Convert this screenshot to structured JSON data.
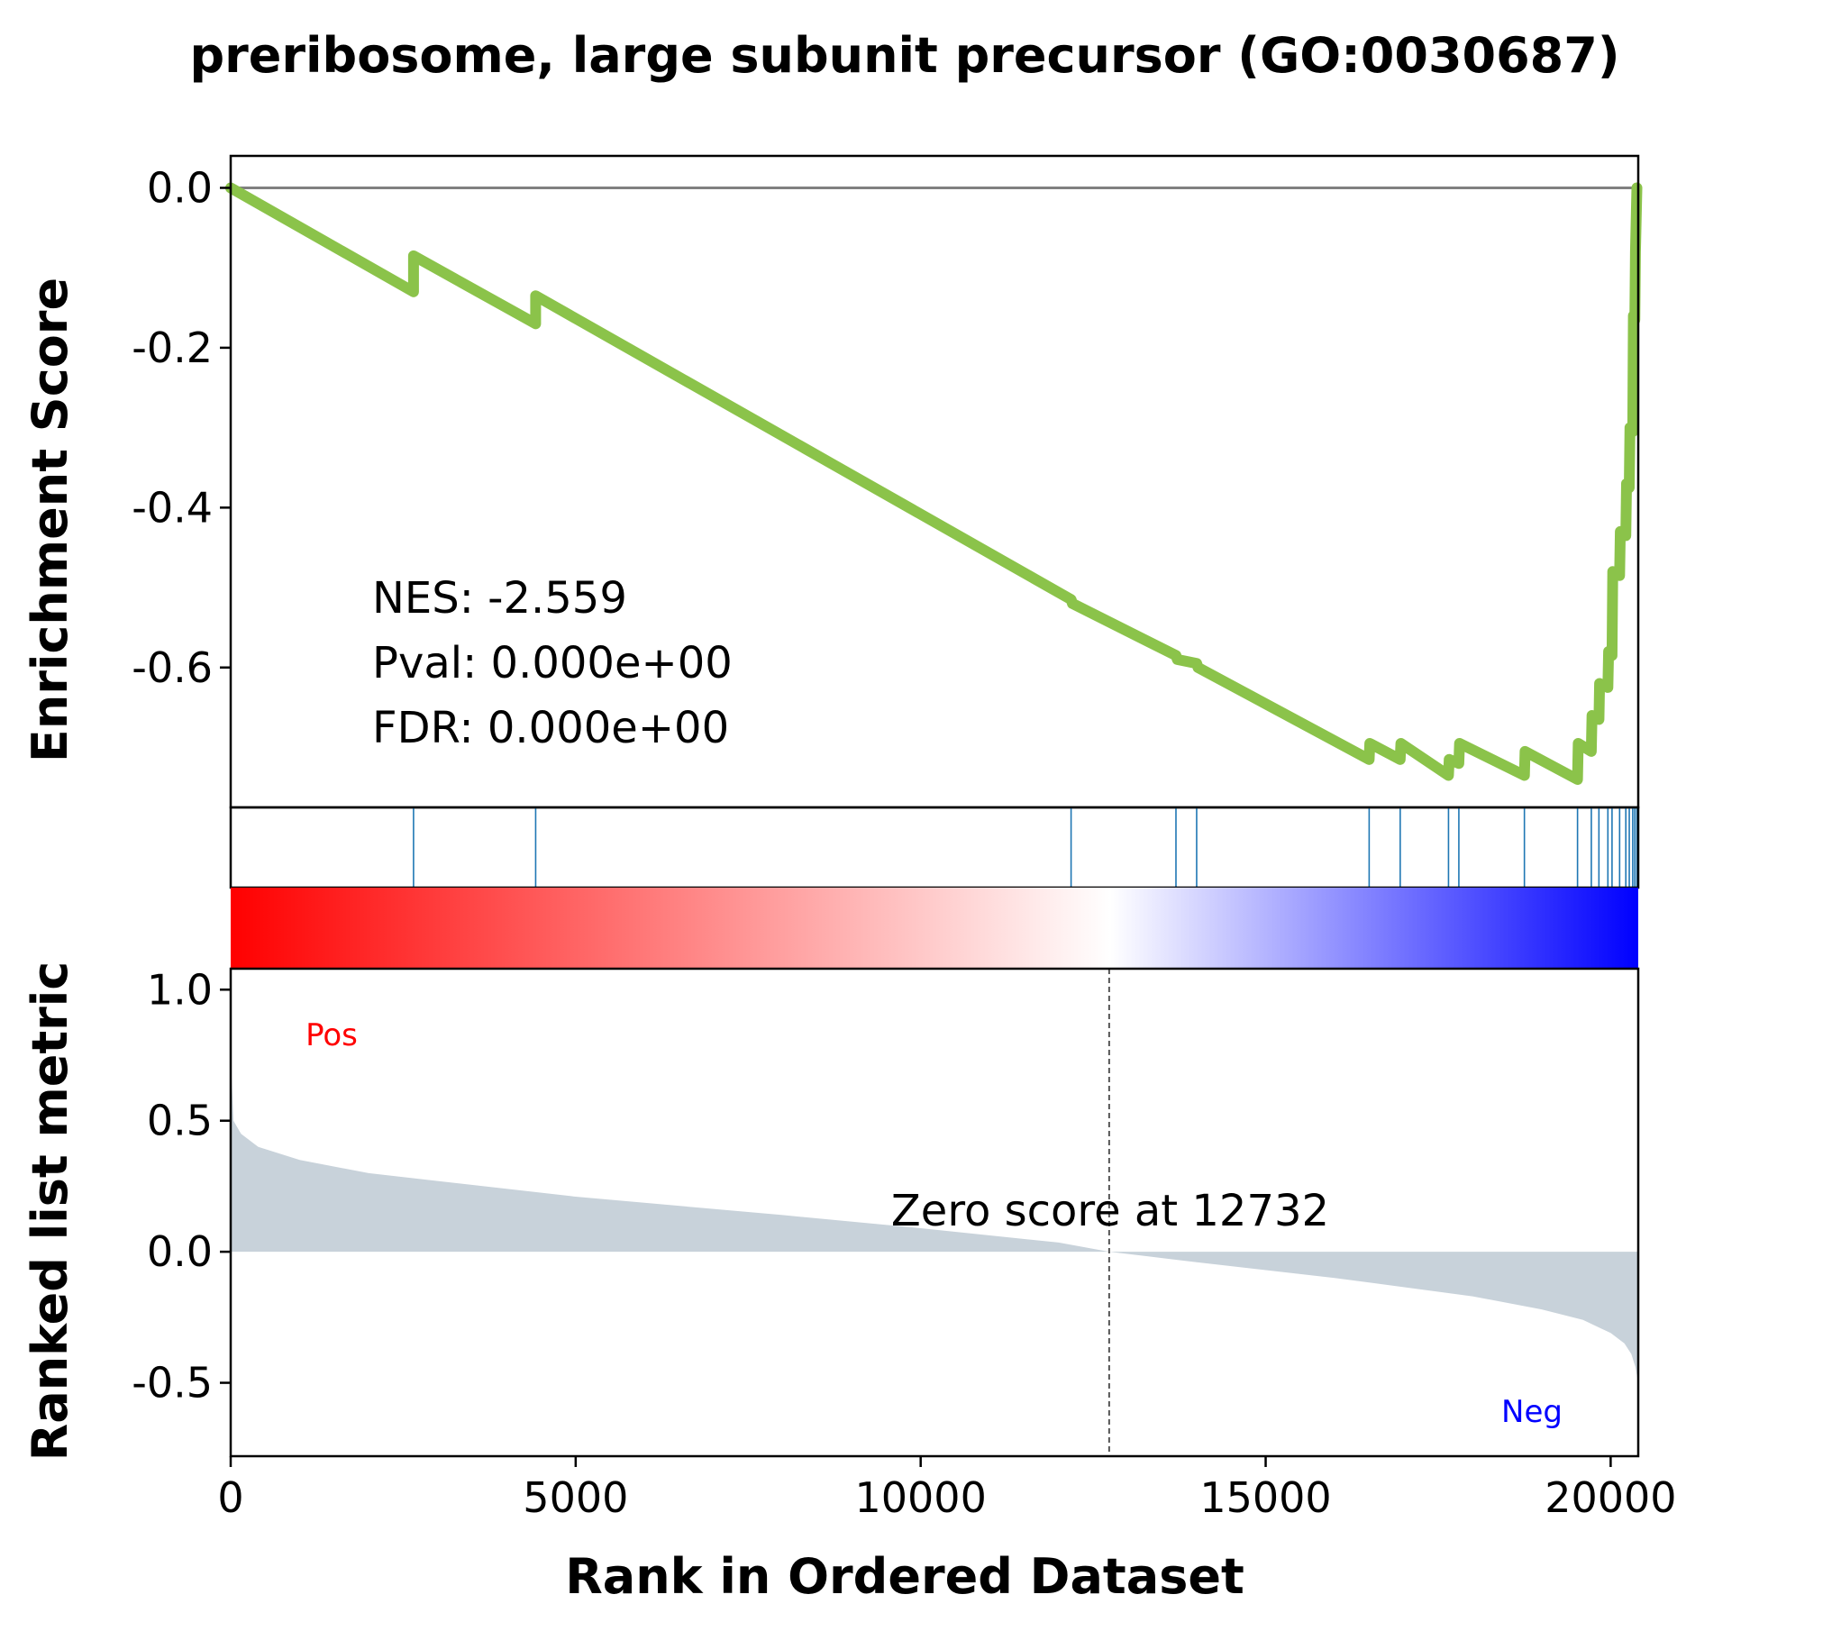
{
  "chart_data": {
    "type": "line",
    "title": "preribosome, large subunit precursor (GO:0030687)",
    "xlabel": "Rank in Ordered Dataset",
    "xlim": [
      0,
      20400
    ],
    "x_ticks": [
      "0",
      "5000",
      "10000",
      "15000",
      "20000"
    ],
    "enrichment_panel": {
      "ylabel": "Enrichment Score",
      "ylim": [
        -0.775,
        0.04
      ],
      "y_ticks": [
        "0.0",
        "-0.2",
        "-0.4",
        "-0.6"
      ],
      "line_color": "#8bc34a",
      "series": [
        {
          "x": [
            0,
            2650,
            2650,
            4420,
            4420,
            12180,
            12200,
            13700,
            13720,
            14000,
            14020,
            16500,
            16510,
            16950,
            16960,
            17650,
            17660,
            17800,
            17810,
            18750,
            18760,
            19520,
            19530,
            19720,
            19730,
            19830,
            19840,
            19960,
            19970,
            20020,
            20030,
            20130,
            20140,
            20220,
            20230,
            20270,
            20280,
            20320,
            20330,
            20350,
            20360,
            20380
          ],
          "y": [
            0.0,
            -0.13,
            -0.085,
            -0.17,
            -0.135,
            -0.515,
            -0.52,
            -0.585,
            -0.59,
            -0.595,
            -0.6,
            -0.715,
            -0.695,
            -0.715,
            -0.695,
            -0.735,
            -0.715,
            -0.72,
            -0.695,
            -0.735,
            -0.705,
            -0.74,
            -0.695,
            -0.705,
            -0.66,
            -0.665,
            -0.62,
            -0.625,
            -0.58,
            -0.585,
            -0.48,
            -0.485,
            -0.43,
            -0.435,
            -0.37,
            -0.375,
            -0.3,
            -0.305,
            -0.16,
            -0.165,
            -0.08,
            0.0
          ]
        }
      ],
      "stats": {
        "nes": "NES: -2.559",
        "pval": "Pval: 0.000e+00",
        "fdr": "FDR: 0.000e+00"
      }
    },
    "hits_panel": {
      "hit_color": "#1f77b4",
      "hit_ranks": [
        2650,
        4420,
        12180,
        13700,
        14000,
        16500,
        16950,
        17650,
        17800,
        18750,
        19520,
        19720,
        19830,
        19960,
        20020,
        20130,
        20220,
        20270,
        20320,
        20350,
        20380
      ]
    },
    "colorbar": {
      "from": "#ff0000",
      "mid": "#ffffff",
      "to": "#0000ff"
    },
    "ranked_panel": {
      "ylabel": "Ranked list metric",
      "ylim": [
        -0.78,
        1.08
      ],
      "y_ticks": [
        "1.0",
        "0.5",
        "0.0",
        "-0.5"
      ],
      "fill_color": "#c8d2da",
      "zero_rank": 12732,
      "zero_label": "Zero score at 12732",
      "pos_label": "Pos",
      "neg_label": "Neg",
      "x": [
        0,
        40,
        150,
        400,
        1000,
        2000,
        3000,
        5000,
        8000,
        10000,
        12000,
        12732,
        14000,
        16000,
        18000,
        19000,
        19600,
        20000,
        20200,
        20300,
        20360,
        20400
      ],
      "y": [
        0.75,
        0.5,
        0.45,
        0.4,
        0.35,
        0.3,
        0.27,
        0.21,
        0.14,
        0.09,
        0.035,
        0.0,
        -0.04,
        -0.1,
        -0.17,
        -0.22,
        -0.26,
        -0.31,
        -0.35,
        -0.39,
        -0.44,
        -0.5
      ]
    }
  }
}
